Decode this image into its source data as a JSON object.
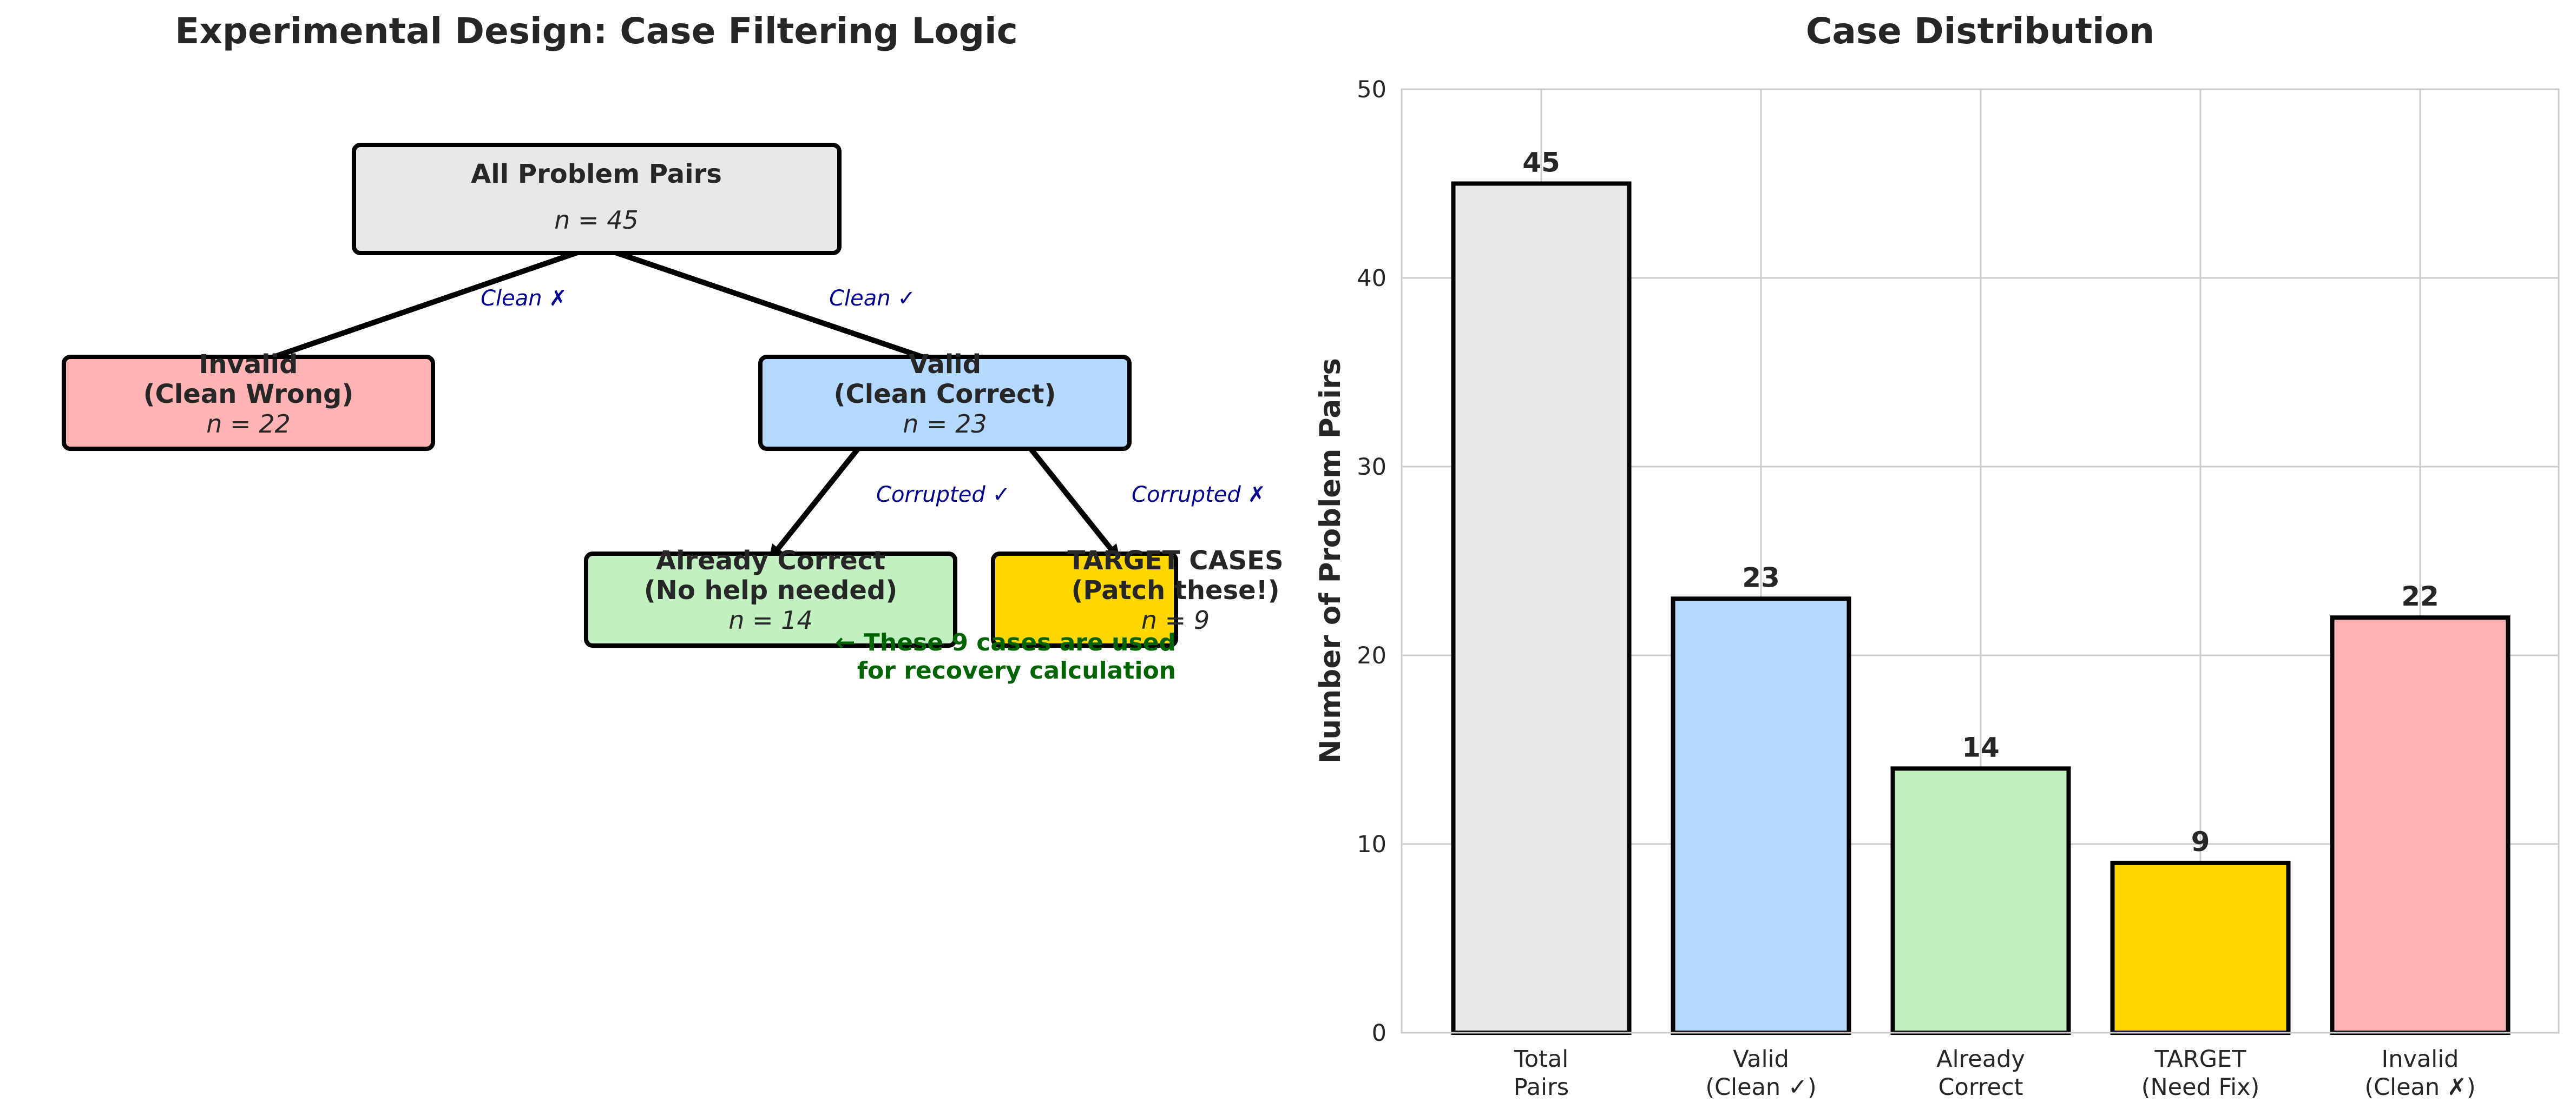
{
  "flow_diagram": {
    "title": "Experimental Design: Case Filtering Logic",
    "nodes": {
      "all": {
        "title_lines": [
          "All Problem Pairs"
        ],
        "n": "n = 45",
        "color": "#e8e8e8"
      },
      "invalid": {
        "title_lines": [
          "Invalid",
          "(Clean Wrong)"
        ],
        "n": "n = 22",
        "color": "#ffb3b3"
      },
      "valid": {
        "title_lines": [
          "Valid",
          "(Clean Correct)"
        ],
        "n": "n = 23",
        "color": "#b3d9ff"
      },
      "already": {
        "title_lines": [
          "Already Correct",
          "(No help needed)"
        ],
        "n": "n = 14",
        "color": "#c1f0c1"
      },
      "target": {
        "title_lines": [
          "TARGET CASES",
          "(Patch these!)"
        ],
        "n": "n = 9",
        "color": "#ffd700"
      }
    },
    "edge_labels": {
      "clean_wrong": "Clean ✗",
      "clean_correct": "Clean ✓",
      "corrupted_correct": "Corrupted ✓",
      "corrupted_wrong": "Corrupted ✗"
    },
    "note_lines": [
      "← These 9 cases are used",
      "for recovery calculation"
    ],
    "edge_color": "#000000",
    "label_color": "#00008b",
    "note_color": "#006400"
  },
  "chart_data": {
    "type": "bar",
    "title": "Case Distribution",
    "ylabel": "Number of Problem Pairs",
    "xlabel": "",
    "categories": [
      [
        "Total",
        "Pairs"
      ],
      [
        "Valid",
        "(Clean ✓)"
      ],
      [
        "Already",
        "Correct"
      ],
      [
        "TARGET",
        "(Need Fix)"
      ],
      [
        "Invalid",
        "(Clean ✗)"
      ]
    ],
    "values": [
      45,
      23,
      14,
      9,
      22
    ],
    "colors": [
      "#e8e8e8",
      "#b3d9ff",
      "#c1f0c1",
      "#ffd700",
      "#ffb3b3"
    ],
    "ylim": [
      0,
      50
    ],
    "yticks": [
      0,
      10,
      20,
      30,
      40,
      50
    ],
    "grid": true
  }
}
